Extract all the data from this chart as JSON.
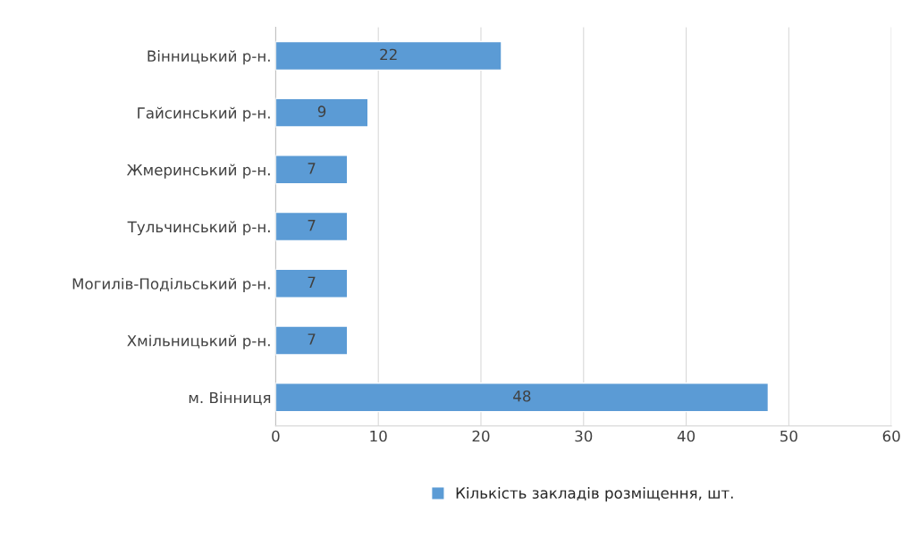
{
  "chart_data": {
    "type": "bar",
    "orientation": "horizontal",
    "categories": [
      "Вінницький р-н.",
      "Гайсинський р-н.",
      "Жмеринський р-н.",
      "Тульчинський р-н.",
      "Могилів-Подільський р-н.",
      "Хмільницький р-н.",
      "м. Вінниця"
    ],
    "series": [
      {
        "name": "Кількість закладів розміщення, шт.",
        "color": "#5b9bd5",
        "values": [
          22,
          9,
          7,
          7,
          7,
          7,
          48
        ]
      }
    ],
    "xlim": [
      0,
      60
    ],
    "xticks": [
      0,
      10,
      20,
      30,
      40,
      50,
      60
    ],
    "grid": "x",
    "legend": "bottom",
    "data_labels": true
  }
}
